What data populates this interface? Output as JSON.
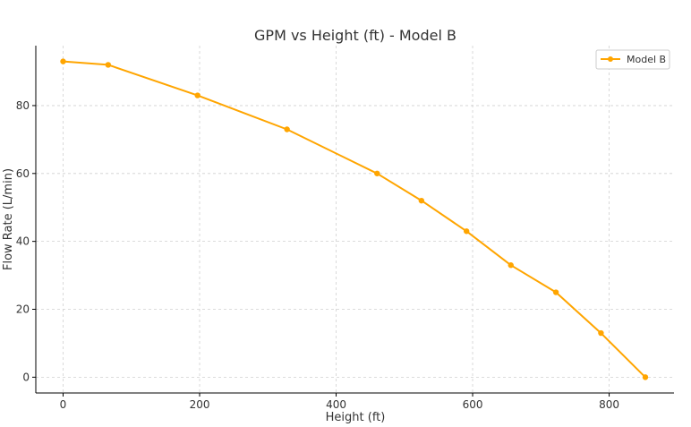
{
  "chart_data": {
    "type": "line",
    "title": "GPM vs Height (ft) - Model B",
    "xlabel": "Height (ft)",
    "ylabel": "Flow Rate (L/min)",
    "xlim": [
      -40,
      895
    ],
    "ylim": [
      -4.65,
      97.65
    ],
    "x_ticks": [
      0,
      200,
      400,
      600,
      800
    ],
    "y_ticks": [
      0,
      20,
      40,
      60,
      80
    ],
    "x_tick_labels": [
      "0",
      "200",
      "400",
      "600",
      "800"
    ],
    "y_tick_labels": [
      "0",
      "20",
      "40",
      "60",
      "80"
    ],
    "grid": true,
    "legend_position": "top-right",
    "series": [
      {
        "name": "Model B",
        "color": "#FFA500",
        "marker": "circle",
        "x": [
          0,
          66,
          197,
          328,
          460,
          525,
          591,
          656,
          722,
          788,
          853
        ],
        "y": [
          93,
          92,
          83,
          73,
          60,
          52,
          43,
          33,
          25,
          13,
          0
        ]
      }
    ]
  }
}
